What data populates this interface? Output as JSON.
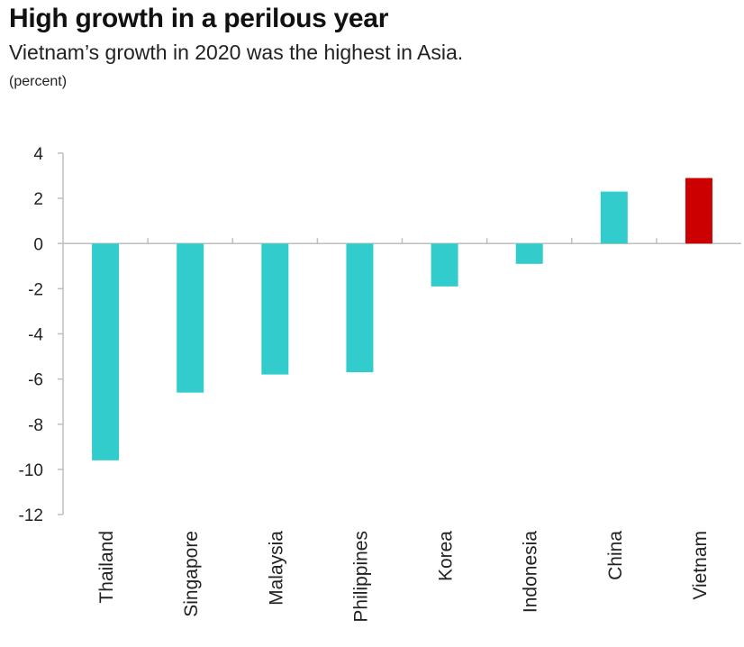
{
  "title": "High growth in a perilous year",
  "subtitle": "Vietnam’s growth in 2020 was the highest in Asia.",
  "unit": "(percent)",
  "colors": {
    "bar": "#33cccc",
    "highlight": "#cc0000",
    "axis": "#bfbfbf"
  },
  "chart_data": {
    "type": "bar",
    "categories": [
      "Thailand",
      "Singapore",
      "Malaysia",
      "Philippines",
      "Korea",
      "Indonesia",
      "China",
      "Vietnam"
    ],
    "values": [
      -9.6,
      -6.6,
      -5.8,
      -5.7,
      -1.9,
      -0.9,
      2.3,
      2.9
    ],
    "highlight_index": 7,
    "ylim": [
      -12,
      4
    ],
    "yticks": [
      4,
      2,
      0,
      -2,
      -4,
      -6,
      -8,
      -10,
      -12
    ],
    "grid": false,
    "legend": "none"
  }
}
